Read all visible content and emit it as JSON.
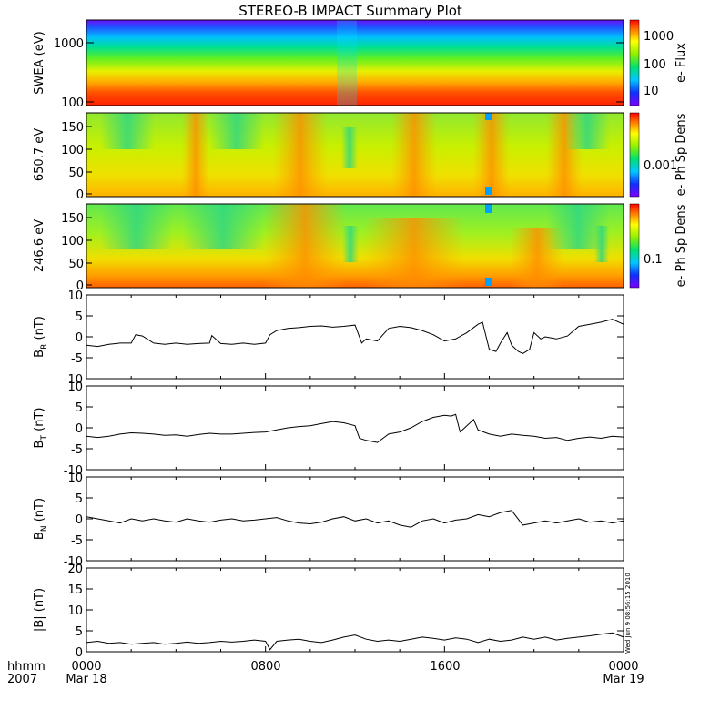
{
  "title": "STEREO-B IMPACT Summary Plot",
  "stamp": "Wed Jun  9 08:56:15 2010",
  "x_axis": {
    "labels_top": [
      "hhmm",
      "0000",
      "0800",
      "1600",
      "0000"
    ],
    "labels_bottom": [
      "2007",
      "Mar 18",
      "",
      "",
      "Mar 19"
    ],
    "range_hours": [
      0,
      24
    ]
  },
  "chart_data": [
    {
      "type": "heatmap",
      "ylabel": "SWEA (eV)",
      "yscale": "log",
      "ylim": [
        90,
        2000
      ],
      "yticks": [
        "1000",
        "100"
      ],
      "colorbar": {
        "label": "e- Flux",
        "ticks": [
          "1000",
          "100",
          "10"
        ]
      }
    },
    {
      "type": "heatmap",
      "ylabel": "650.7 eV",
      "ylim": [
        0,
        180
      ],
      "yticks": [
        "150",
        "100",
        "50",
        "0"
      ],
      "colorbar": {
        "label": "e- Ph Sp Dens",
        "ticks": [
          "0.001"
        ]
      }
    },
    {
      "type": "heatmap",
      "ylabel": "246.6 eV",
      "ylim": [
        0,
        180
      ],
      "yticks": [
        "150",
        "100",
        "50",
        "0"
      ],
      "colorbar": {
        "label": "e- Ph Sp Dens",
        "ticks": [
          "0.1"
        ]
      }
    },
    {
      "type": "line",
      "ylabel": "B_R (nT)",
      "ylim": [
        -10,
        10
      ],
      "yticks": [
        "10",
        "5",
        "0",
        "-5",
        "-10"
      ],
      "x": [
        0,
        0.5,
        1,
        1.5,
        2,
        2.2,
        2.5,
        3,
        3.5,
        4,
        4.5,
        5,
        5.5,
        5.6,
        6,
        6.5,
        7,
        7.5,
        8,
        8.2,
        8.5,
        9,
        9.5,
        10,
        10.5,
        11,
        11.5,
        12,
        12.3,
        12.5,
        13,
        13.5,
        14,
        14.5,
        15,
        15.5,
        16,
        16.5,
        17,
        17.5,
        17.7,
        18,
        18.3,
        18.5,
        18.8,
        19,
        19.3,
        19.5,
        19.8,
        20,
        20.3,
        20.5,
        21,
        21.5,
        22,
        22.5,
        23,
        23.5,
        24
      ],
      "y": [
        -2,
        -2.3,
        -1.8,
        -1.5,
        -1.5,
        0.5,
        0.2,
        -1.5,
        -1.8,
        -1.5,
        -1.8,
        -1.6,
        -1.5,
        0.3,
        -1.6,
        -1.8,
        -1.5,
        -1.8,
        -1.5,
        0.5,
        1.5,
        2,
        2.2,
        2.5,
        2.6,
        2.3,
        2.5,
        2.8,
        -1.5,
        -0.5,
        -1,
        2,
        2.5,
        2.2,
        1.5,
        0.5,
        -1,
        -0.5,
        1,
        3,
        3.5,
        -3,
        -3.5,
        -1.5,
        1,
        -2,
        -3.5,
        -4,
        -3,
        1,
        -0.5,
        0,
        -0.5,
        0.2,
        2.5,
        3,
        3.5,
        4.2,
        3
      ]
    },
    {
      "type": "line",
      "ylabel": "B_T (nT)",
      "ylim": [
        -10,
        10
      ],
      "yticks": [
        "10",
        "5",
        "0",
        "-5",
        "-10"
      ],
      "x": [
        0,
        0.5,
        1,
        1.5,
        2,
        2.5,
        3,
        3.5,
        4,
        4.5,
        5,
        5.5,
        6,
        6.5,
        7,
        7.5,
        8,
        8.5,
        9,
        9.5,
        10,
        10.5,
        11,
        11.5,
        12,
        12.2,
        12.5,
        13,
        13.5,
        14,
        14.5,
        15,
        15.5,
        16,
        16.3,
        16.5,
        16.7,
        17,
        17.3,
        17.5,
        18,
        18.5,
        19,
        19.5,
        20,
        20.5,
        21,
        21.5,
        22,
        22.5,
        23,
        23.5,
        24
      ],
      "y": [
        -2,
        -2.3,
        -2,
        -1.5,
        -1.2,
        -1.3,
        -1.5,
        -1.8,
        -1.7,
        -2,
        -1.6,
        -1.3,
        -1.5,
        -1.5,
        -1.3,
        -1.1,
        -1,
        -0.5,
        0,
        0.3,
        0.5,
        1,
        1.5,
        1.2,
        0.5,
        -2.5,
        -3,
        -3.5,
        -1.5,
        -1,
        0,
        1.5,
        2.5,
        3,
        2.8,
        3.2,
        -1,
        0.5,
        2,
        -0.5,
        -1.5,
        -2,
        -1.5,
        -1.8,
        -2,
        -2.5,
        -2.3,
        -3,
        -2.5,
        -2.2,
        -2.5,
        -2,
        -2.2
      ]
    },
    {
      "type": "line",
      "ylabel": "B_N (nT)",
      "ylim": [
        -10,
        10
      ],
      "yticks": [
        "10",
        "5",
        "0",
        "-5",
        "-10"
      ],
      "x": [
        0,
        0.5,
        1,
        1.5,
        2,
        2.5,
        3,
        3.5,
        4,
        4.5,
        5,
        5.5,
        6,
        6.5,
        7,
        7.5,
        8,
        8.5,
        9,
        9.5,
        10,
        10.5,
        11,
        11.5,
        12,
        12.5,
        13,
        13.5,
        14,
        14.5,
        15,
        15.5,
        16,
        16.5,
        17,
        17.5,
        18,
        18.5,
        19,
        19.5,
        20,
        20.5,
        21,
        21.5,
        22,
        22.5,
        23,
        23.5,
        24
      ],
      "y": [
        0.5,
        0,
        -0.5,
        -1,
        0,
        -0.5,
        0,
        -0.5,
        -0.8,
        0,
        -0.5,
        -0.8,
        -0.3,
        0,
        -0.5,
        -0.3,
        0,
        0.3,
        -0.5,
        -1,
        -1.2,
        -0.8,
        0,
        0.5,
        -0.5,
        0,
        -1,
        -0.5,
        -1.5,
        -2,
        -0.5,
        0,
        -1,
        -0.3,
        0,
        1,
        0.5,
        1.5,
        2,
        -1.5,
        -1,
        -0.5,
        -1,
        -0.5,
        0,
        -0.8,
        -0.5,
        -1,
        -0.5
      ]
    },
    {
      "type": "line",
      "ylabel": "|B| (nT)",
      "ylim": [
        0,
        20
      ],
      "yticks": [
        "20",
        "15",
        "10",
        "5",
        "0"
      ],
      "x": [
        0,
        0.5,
        1,
        1.5,
        2,
        2.5,
        3,
        3.5,
        4,
        4.5,
        5,
        5.5,
        6,
        6.5,
        7,
        7.5,
        8,
        8.2,
        8.5,
        9,
        9.5,
        10,
        10.5,
        11,
        11.5,
        12,
        12.5,
        13,
        13.5,
        14,
        14.5,
        15,
        15.5,
        16,
        16.5,
        17,
        17.5,
        18,
        18.5,
        19,
        19.5,
        20,
        20.5,
        21,
        21.5,
        22,
        22.5,
        23,
        23.5,
        24
      ],
      "y": [
        2.2,
        2.5,
        2,
        2.2,
        1.8,
        2,
        2.2,
        1.8,
        2,
        2.3,
        2,
        2.2,
        2.5,
        2.3,
        2.5,
        2.8,
        2.5,
        0.5,
        2.5,
        2.8,
        3,
        2.5,
        2.2,
        2.8,
        3.5,
        4,
        3,
        2.5,
        2.8,
        2.5,
        3,
        3.5,
        3.2,
        2.8,
        3.3,
        3,
        2.2,
        3,
        2.5,
        2.8,
        3.5,
        3,
        3.5,
        2.8,
        3.2,
        3.5,
        3.8,
        4.2,
        4.5,
        3.5
      ]
    }
  ]
}
